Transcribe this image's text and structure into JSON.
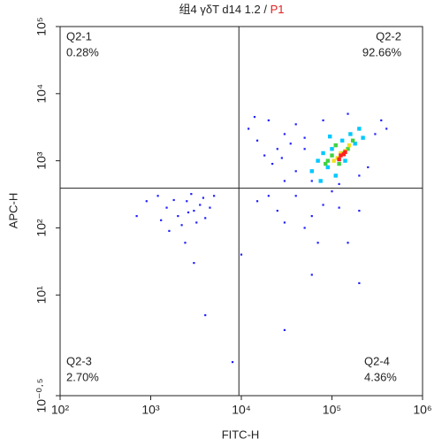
{
  "chart_data": {
    "type": "scatter",
    "title": "组4 γδT d14 1.2 /",
    "gate": "P1",
    "x_label": "FITC-H",
    "y_label": "APC-H",
    "log_x": true,
    "log_y": true,
    "xlim": [
      100,
      1000000
    ],
    "ylim": [
      0.316,
      100000
    ],
    "xticks": [
      {
        "value": 100,
        "label": "10²"
      },
      {
        "value": 1000,
        "label": "10³"
      },
      {
        "value": 10000,
        "label": "10⁴"
      },
      {
        "value": 100000,
        "label": "10⁵"
      },
      {
        "value": 1000000,
        "label": "10⁶"
      }
    ],
    "yticks": [
      {
        "value": 0.316,
        "label": "10⁻⁰·⁵"
      },
      {
        "value": 10,
        "label": "10¹"
      },
      {
        "value": 100,
        "label": "10²"
      },
      {
        "value": 1000,
        "label": "10³"
      },
      {
        "value": 10000,
        "label": "10⁴"
      },
      {
        "value": 100000,
        "label": "10⁵"
      }
    ],
    "quadrant_x": 9400,
    "quadrant_y": 390,
    "quadrants": [
      {
        "name": "Q2-1",
        "label": "0.28%"
      },
      {
        "name": "Q2-2",
        "label": "92.66%"
      },
      {
        "name": "Q2-3",
        "label": "2.70%"
      },
      {
        "name": "Q2-4",
        "label": "4.36%"
      }
    ],
    "series": [
      {
        "color": "#1f1fff",
        "x": [
          1500,
          2000,
          2500,
          3000,
          3500,
          1200,
          4000,
          2200,
          1800,
          2800,
          3200,
          4500,
          900,
          1600,
          5000,
          2600,
          3800,
          700,
          2400,
          1300,
          12000,
          15000,
          20000,
          25000,
          30000,
          18000,
          40000,
          22000,
          35000,
          14000,
          28000,
          50000,
          15000,
          25000,
          40000,
          60000,
          80000,
          30000,
          100000,
          120000,
          200000,
          50000,
          20000,
          70000,
          4000,
          30000,
          8000,
          60000,
          200000,
          3000,
          150000,
          10000,
          40000,
          60000,
          250000,
          300000,
          350000,
          50000,
          80000,
          150000,
          30000,
          200000,
          400000,
          120000
        ],
        "y": [
          200,
          150,
          250,
          180,
          220,
          300,
          140,
          110,
          260,
          320,
          120,
          200,
          250,
          90,
          300,
          170,
          280,
          150,
          60,
          130,
          3000,
          2000,
          4000,
          1500,
          2500,
          1200,
          3500,
          900,
          1800,
          4500,
          1100,
          2200,
          250,
          180,
          300,
          150,
          220,
          120,
          350,
          200,
          180,
          100,
          300,
          60,
          5,
          3,
          1,
          20,
          15,
          30,
          60,
          40,
          700,
          500,
          800,
          2500,
          4000,
          1500,
          4000,
          5000,
          500,
          600,
          3000,
          450
        ]
      },
      {
        "color": "#00c8ff",
        "x": [
          70000,
          90000,
          100000,
          130000,
          160000,
          60000,
          180000,
          110000,
          80000,
          200000,
          140000,
          75000,
          220000,
          95000
        ],
        "y": [
          1000,
          800,
          1500,
          2000,
          2500,
          700,
          1800,
          600,
          1300,
          3000,
          1000,
          500,
          2200,
          2300
        ]
      },
      {
        "color": "#3fd23f",
        "x": [
          100000,
          120000,
          150000,
          110000,
          90000,
          170000,
          130000,
          85000
        ],
        "y": [
          1200,
          900,
          1500,
          1700,
          1000,
          2000,
          1300,
          900
        ]
      },
      {
        "color": "#f0e020",
        "x": [
          115000,
          140000,
          125000,
          105000,
          155000
        ],
        "y": [
          1100,
          1400,
          1300,
          1000,
          1700
        ]
      },
      {
        "color": "#ff2020",
        "x": [
          125000,
          135000,
          120000,
          140000
        ],
        "y": [
          1200,
          1250,
          1050,
          1350
        ]
      }
    ]
  }
}
